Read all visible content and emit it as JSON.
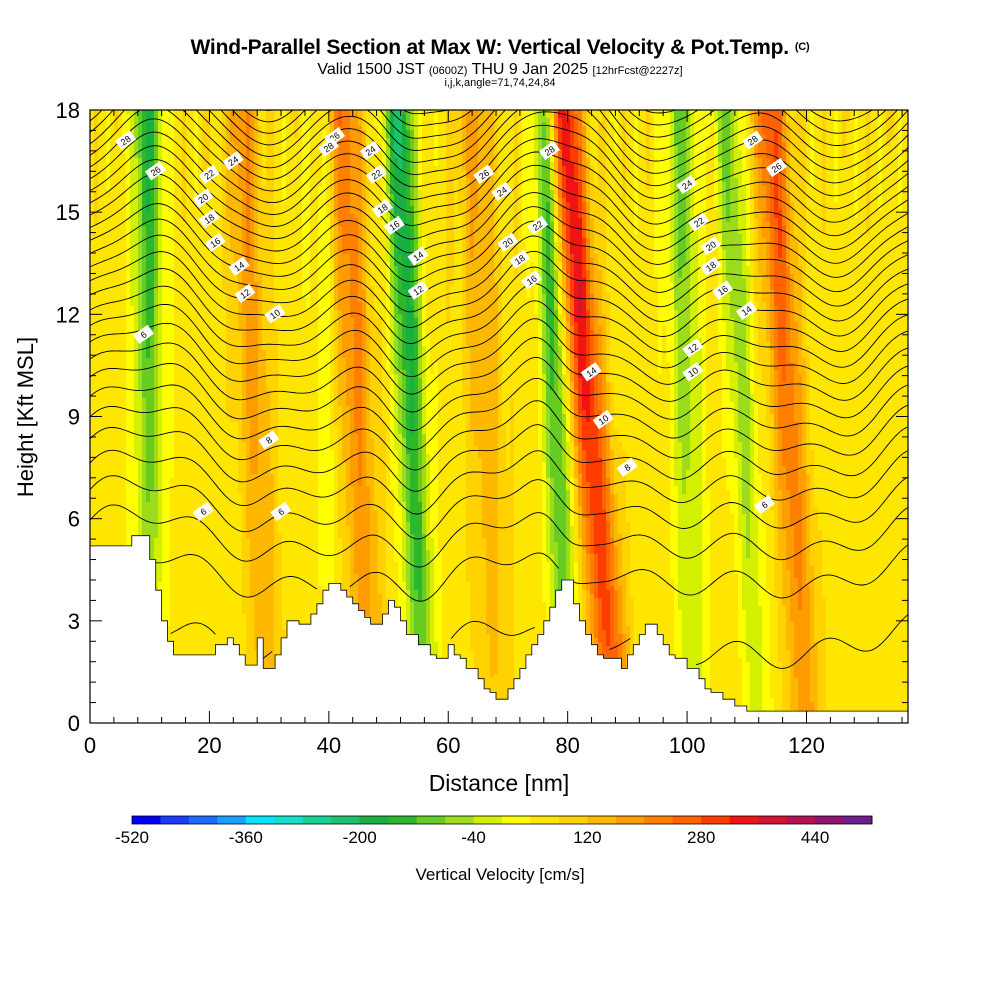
{
  "header": {
    "title": "Wind-Parallel Section at Max W: Vertical Velocity & Pot.Temp.",
    "title_tag": "(C)",
    "subtitle_main": "Valid 1500 JST",
    "subtitle_z": "(0600Z)",
    "subtitle_date": "THU 9 Jan 2025",
    "subtitle_fcst": "[12hrFcst@2227z]",
    "indices": "i,j,k,angle=71,74,24,84"
  },
  "chart_data": {
    "type": "heatmap",
    "xlabel": "Distance [nm]",
    "ylabel": "Height [Kft MSL]",
    "xlim": [
      0,
      137
    ],
    "ylim": [
      0,
      18
    ],
    "x_ticks": [
      "0",
      "20",
      "40",
      "60",
      "80",
      "100",
      "120"
    ],
    "y_ticks": [
      "0",
      "3",
      "6",
      "9",
      "12",
      "15",
      "18"
    ],
    "colorbar": {
      "label": "Vertical Velocity [cm/s]",
      "min": -520,
      "max": 520,
      "step": 40,
      "tick_labels": [
        "-520",
        "-360",
        "-200",
        "-40",
        "120",
        "280",
        "440"
      ],
      "colors": [
        "#0000ff",
        "#1a3cff",
        "#1e6cff",
        "#19a0ff",
        "#00e6ff",
        "#12e0c8",
        "#19d296",
        "#1cc270",
        "#18b040",
        "#2cb82a",
        "#66cc22",
        "#9cdc1a",
        "#d2f000",
        "#ffff00",
        "#ffe600",
        "#ffd200",
        "#ffb800",
        "#ff9c00",
        "#ff8000",
        "#ff6400",
        "#ff3c00",
        "#f01414",
        "#d21432",
        "#b41450",
        "#8c146e",
        "#6e1e8c"
      ]
    },
    "terrain_profile_kft": {
      "x": [
        0,
        6,
        7,
        9,
        10,
        11,
        12,
        13,
        14,
        15,
        20,
        21,
        22,
        23,
        24,
        25,
        26,
        27,
        28,
        29,
        30,
        31,
        32,
        33,
        34,
        35,
        36,
        37,
        38,
        39,
        40,
        41,
        42,
        43,
        44,
        45,
        46,
        47,
        48,
        49,
        50,
        51,
        52,
        53,
        54,
        55,
        56,
        57,
        58,
        59,
        60,
        61,
        62,
        63,
        64,
        65,
        66,
        67,
        68,
        69,
        70,
        71,
        72,
        73,
        74,
        75,
        76,
        77,
        78,
        79,
        80,
        81,
        82,
        83,
        84,
        85,
        86,
        87,
        88,
        89,
        90,
        91,
        92,
        93,
        94,
        95,
        96,
        97,
        98,
        99,
        100,
        101,
        102,
        103,
        104,
        105,
        106,
        107,
        108,
        110,
        137
      ],
      "z": [
        5.2,
        5.2,
        5.5,
        5.5,
        4.8,
        3.9,
        3.0,
        2.4,
        2.0,
        2.0,
        2.0,
        2.3,
        2.3,
        2.5,
        2.3,
        2.0,
        1.7,
        1.7,
        2.5,
        1.6,
        1.6,
        2.0,
        2.5,
        3.0,
        3.0,
        2.9,
        2.9,
        3.2,
        3.5,
        3.9,
        4.1,
        4.1,
        3.9,
        3.7,
        3.5,
        3.3,
        3.1,
        2.9,
        2.9,
        3.2,
        3.6,
        3.4,
        3.0,
        2.6,
        2.6,
        2.3,
        2.3,
        2.0,
        1.9,
        1.9,
        2.3,
        2.0,
        1.9,
        1.6,
        1.6,
        1.3,
        1.0,
        0.9,
        0.7,
        0.7,
        1.0,
        1.3,
        1.6,
        2.0,
        2.3,
        2.6,
        3.0,
        3.4,
        3.9,
        4.2,
        4.2,
        3.5,
        3.0,
        2.6,
        2.3,
        2.0,
        1.9,
        1.9,
        1.9,
        1.6,
        2.0,
        2.3,
        2.6,
        2.9,
        2.9,
        2.6,
        2.3,
        2.0,
        1.9,
        1.9,
        1.6,
        1.6,
        1.3,
        1.0,
        0.9,
        0.9,
        0.7,
        0.7,
        0.5,
        0.35,
        0.35
      ]
    },
    "potential_temperature_contours": {
      "units": "°C",
      "interval": 1,
      "labeled_levels": [
        "6",
        "8",
        "10",
        "12",
        "14",
        "16",
        "18",
        "20",
        "22",
        "24",
        "26",
        "28"
      ]
    }
  }
}
